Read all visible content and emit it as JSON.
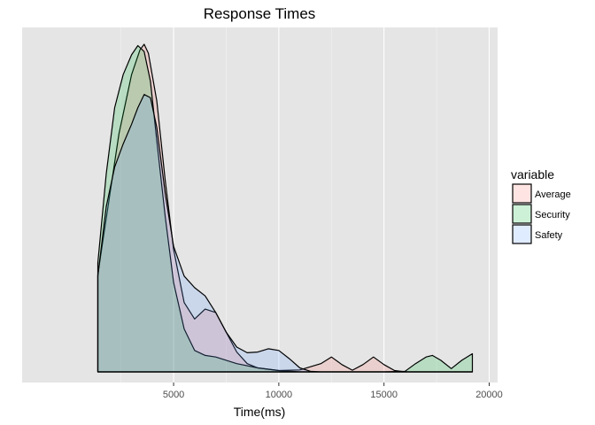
{
  "chart_data": {
    "type": "area",
    "title": "Response Times",
    "xlabel": "Time(ms)",
    "ylabel": "",
    "xlim": [
      -2200,
      20400
    ],
    "ylim": [
      0,
      1
    ],
    "x_ticks": [
      5000,
      10000,
      15000,
      20000
    ],
    "x_tick_labels": [
      "5000",
      "10000",
      "15000",
      "20000"
    ],
    "y_ticks": [],
    "grid": true,
    "legend": {
      "title": "variable",
      "position": "right"
    },
    "series": [
      {
        "name": "Average",
        "color": "#F8766D",
        "x": [
          1400,
          2000,
          2400,
          3000,
          3400,
          3600,
          3800,
          4200,
          4600,
          5000,
          5500,
          6000,
          6500,
          7000,
          7500,
          8000,
          8500,
          9000,
          10000,
          11000,
          12000,
          12500,
          13000,
          13500,
          14000,
          14500,
          15000,
          15500,
          16000,
          17000,
          18000,
          19200
        ],
        "y": [
          0.295,
          0.55,
          0.72,
          0.9,
          0.975,
          0.992,
          0.965,
          0.82,
          0.58,
          0.37,
          0.21,
          0.16,
          0.19,
          0.18,
          0.12,
          0.06,
          0.025,
          0.012,
          0.004,
          0.006,
          0.025,
          0.045,
          0.022,
          0.005,
          0.022,
          0.045,
          0.022,
          0.004,
          0.0,
          0.0,
          0.0,
          0.0
        ]
      },
      {
        "name": "Security",
        "color": "#00BA38",
        "x": [
          1400,
          1800,
          2200,
          2600,
          3000,
          3300,
          3600,
          3900,
          4200,
          4600,
          5000,
          5500,
          6000,
          6500,
          7000,
          7500,
          8000,
          9000,
          10000,
          11000,
          12000,
          13000,
          14000,
          15000,
          16000,
          16500,
          17000,
          17300,
          17700,
          18200,
          18700,
          19200
        ],
        "y": [
          0.33,
          0.6,
          0.8,
          0.9,
          0.96,
          0.988,
          0.97,
          0.88,
          0.7,
          0.47,
          0.27,
          0.13,
          0.065,
          0.05,
          0.045,
          0.035,
          0.025,
          0.012,
          0.004,
          0.0,
          0.0,
          0.0,
          0.0,
          0.0,
          0.002,
          0.025,
          0.045,
          0.05,
          0.035,
          0.01,
          0.035,
          0.055
        ]
      },
      {
        "name": "Safety",
        "color": "#619CFF",
        "x": [
          1400,
          1800,
          2200,
          2600,
          3000,
          3300,
          3600,
          3900,
          4200,
          4600,
          5000,
          5500,
          6000,
          6500,
          7000,
          7500,
          8000,
          8500,
          9000,
          9500,
          10000,
          10500,
          11000,
          11500,
          12000,
          13000,
          14000,
          15000,
          16000,
          17000,
          18000,
          19200
        ],
        "y": [
          0.29,
          0.5,
          0.62,
          0.69,
          0.75,
          0.8,
          0.84,
          0.83,
          0.74,
          0.54,
          0.38,
          0.29,
          0.255,
          0.23,
          0.18,
          0.12,
          0.075,
          0.058,
          0.06,
          0.07,
          0.065,
          0.04,
          0.012,
          0.002,
          0.0,
          0.0,
          0.0,
          0.0,
          0.0,
          0.0,
          0.0,
          0.0
        ]
      }
    ]
  }
}
